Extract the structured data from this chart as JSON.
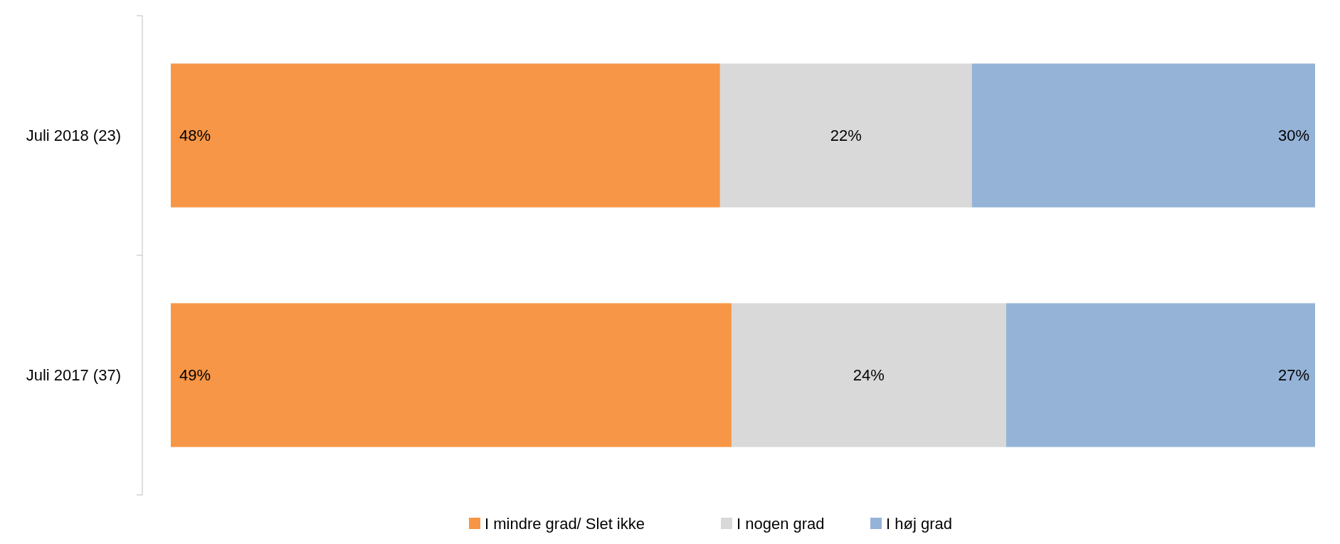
{
  "chart_data": {
    "type": "bar",
    "orientation": "horizontal",
    "stacked": true,
    "categories": [
      "Juli 2018 (23)",
      "Juli 2017 (37)"
    ],
    "xlim": [
      0,
      100
    ],
    "tick_labels": "y",
    "legend": "bottom",
    "series": [
      {
        "name": "I mindre grad/ Slet ikke",
        "color": "#f79646",
        "values": [
          48,
          49
        ],
        "value_labels": [
          "48%",
          "49%"
        ]
      },
      {
        "name": "I nogen grad",
        "color": "#d9d9d9",
        "values": [
          22,
          24
        ],
        "value_labels": [
          "22%",
          "24%"
        ]
      },
      {
        "name": "I høj grad",
        "color": "#95b3d7",
        "values": [
          30,
          27
        ],
        "value_labels": [
          "30%",
          "27%"
        ]
      }
    ]
  }
}
